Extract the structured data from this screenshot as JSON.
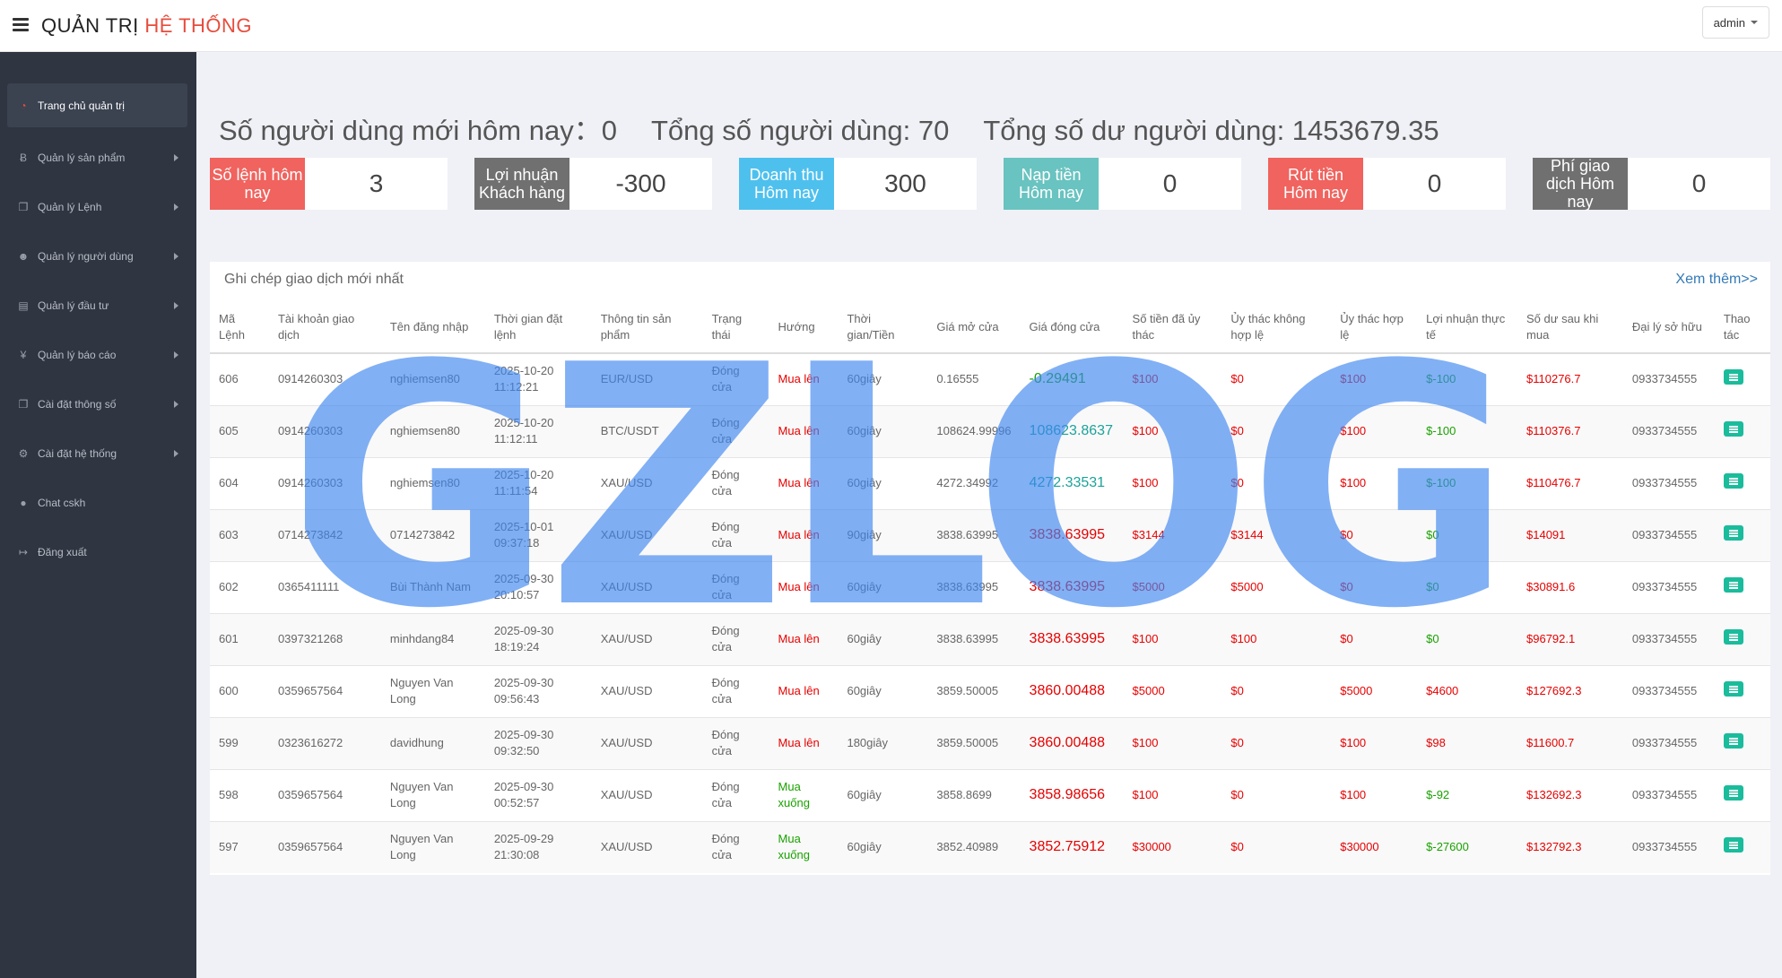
{
  "header": {
    "brand_part1": "QUẢN TRỊ ",
    "brand_part2": "HỆ THỐNG",
    "user_label": "admin"
  },
  "sidebar": {
    "items": [
      {
        "label": "Trang chủ quản trị",
        "icon": "dashboard-icon",
        "active": true
      },
      {
        "label": "Quản lý sản phẩm",
        "icon": "bitcoin-icon"
      },
      {
        "label": "Quản lý Lệnh",
        "icon": "copy-icon"
      },
      {
        "label": "Quản lý người dùng",
        "icon": "user-icon"
      },
      {
        "label": "Quản lý đầu tư",
        "icon": "book-icon"
      },
      {
        "label": "Quản lý báo cáo",
        "icon": "yen-icon"
      },
      {
        "label": "Cài đặt thông số",
        "icon": "copy-icon"
      },
      {
        "label": "Cài đặt hệ thống",
        "icon": "cogs-icon"
      },
      {
        "label": "Chat cskh",
        "icon": "chat-icon"
      },
      {
        "label": "Đăng xuất",
        "icon": "logout-icon"
      }
    ]
  },
  "stats": {
    "new_users": "Số người dùng mới hôm nay：0",
    "total_users": "Tổng số người dùng: 70",
    "total_balance": "Tổng số dư người dùng: 1453679.35"
  },
  "cards": [
    {
      "label": "Số lệnh hôm nay",
      "value": "3",
      "color": "#f0635e"
    },
    {
      "label": "Lợi nhuận Khách hàng",
      "value": "-300",
      "color": "#707070"
    },
    {
      "label": "Doanh thu Hôm nay",
      "value": "300",
      "color": "#4ec0ee"
    },
    {
      "label": "Nạp tiền Hôm nay",
      "value": "0",
      "color": "#69c3c0"
    },
    {
      "label": "Rút tiền Hôm nay",
      "value": "0",
      "color": "#f0635e"
    },
    {
      "label": "Phí giao dịch Hôm nay",
      "value": "0",
      "color": "#707070"
    }
  ],
  "panel": {
    "title": "Ghi chép giao dịch mới nhất",
    "more": "Xem thêm>>"
  },
  "table": {
    "headers": [
      "Mã Lệnh",
      "Tài khoản giao dịch",
      "Tên đăng nhập",
      "Thời gian đặt lệnh",
      "Thông tin sản phẩm",
      "Trạng thái",
      "Hướng",
      "Thời gian/Tiền",
      "Giá mở cửa",
      "Giá đóng cửa",
      "Số tiền đã ủy thác",
      "Ủy thác không hợp lệ",
      "Ủy thác hợp lệ",
      "Lợi nhuận thực tế",
      "Số dư sau khi mua",
      "Đại lý sở hữu",
      "Thao tác"
    ],
    "rows": [
      [
        "606",
        "0914260303",
        "nghiemsen80",
        "2025-10-20 11:12:21",
        "EUR/USD",
        "Đóng cửa",
        "Mua lên",
        "60giây",
        "0.16555",
        "-0.29491",
        "$100",
        "$0",
        "$100",
        "$-100",
        "$110276.7",
        "0933734555"
      ],
      [
        "605",
        "0914260303",
        "nghiemsen80",
        "2025-10-20 11:12:11",
        "BTC/USDT",
        "Đóng cửa",
        "Mua lên",
        "60giây",
        "108624.99996",
        "108623.8637",
        "$100",
        "$0",
        "$100",
        "$-100",
        "$110376.7",
        "0933734555"
      ],
      [
        "604",
        "0914260303",
        "nghiemsen80",
        "2025-10-20 11:11:54",
        "XAU/USD",
        "Đóng cửa",
        "Mua lên",
        "60giây",
        "4272.34992",
        "4272.33531",
        "$100",
        "$0",
        "$100",
        "$-100",
        "$110476.7",
        "0933734555"
      ],
      [
        "603",
        "0714273842",
        "0714273842",
        "2025-10-01 09:37:18",
        "XAU/USD",
        "Đóng cửa",
        "Mua lên",
        "90giây",
        "3838.63995",
        "3838.63995",
        "$3144",
        "$3144",
        "$0",
        "$0",
        "$14091",
        "0933734555"
      ],
      [
        "602",
        "0365411111",
        "Bùi Thành Nam",
        "2025-09-30 20:10:57",
        "XAU/USD",
        "Đóng cửa",
        "Mua lên",
        "60giây",
        "3838.63995",
        "3838.63995",
        "$5000",
        "$5000",
        "$0",
        "$0",
        "$30891.6",
        "0933734555"
      ],
      [
        "601",
        "0397321268",
        "minhdang84",
        "2025-09-30 18:19:24",
        "XAU/USD",
        "Đóng cửa",
        "Mua lên",
        "60giây",
        "3838.63995",
        "3838.63995",
        "$100",
        "$100",
        "$0",
        "$0",
        "$96792.1",
        "0933734555"
      ],
      [
        "600",
        "0359657564",
        "Nguyen Van Long",
        "2025-09-30 09:56:43",
        "XAU/USD",
        "Đóng cửa",
        "Mua lên",
        "60giây",
        "3859.50005",
        "3860.00488",
        "$5000",
        "$0",
        "$5000",
        "$4600",
        "$127692.3",
        "0933734555"
      ],
      [
        "599",
        "0323616272",
        "davidhung",
        "2025-09-30 09:32:50",
        "XAU/USD",
        "Đóng cửa",
        "Mua lên",
        "180giây",
        "3859.50005",
        "3860.00488",
        "$100",
        "$0",
        "$100",
        "$98",
        "$11600.7",
        "0933734555"
      ],
      [
        "598",
        "0359657564",
        "Nguyen Van Long",
        "2025-09-30 00:52:57",
        "XAU/USD",
        "Đóng cửa",
        "Mua xuống",
        "60giây",
        "3858.8699",
        "3858.98656",
        "$100",
        "$0",
        "$100",
        "$-92",
        "$132692.3",
        "0933734555"
      ],
      [
        "597",
        "0359657564",
        "Nguyen Van Long",
        "2025-09-29 21:30:08",
        "XAU/USD",
        "Đóng cửa",
        "Mua xuống",
        "60giây",
        "3852.40989",
        "3852.75912",
        "$30000",
        "$0",
        "$30000",
        "$-27600",
        "$132792.3",
        "0933734555"
      ]
    ]
  },
  "watermark": "GZLOG"
}
